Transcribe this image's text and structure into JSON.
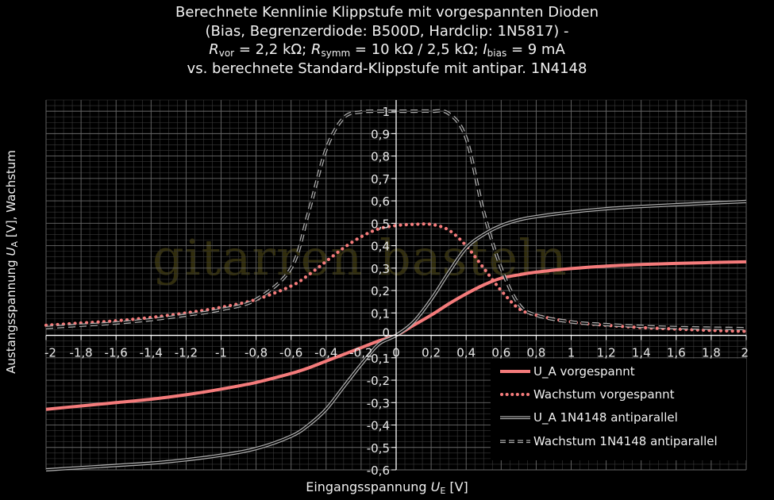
{
  "title": {
    "line1": "Berechnete Kennlinie Klippstufe mit vorgespannten Dioden",
    "line2": "(Bias, Begrenzerdiode: B500D, Hardclip: 1N5817) -",
    "line3": {
      "r1": "R",
      "r1_sub": "vor",
      "r1_val": " = 2,2 kΩ; ",
      "r2": "R",
      "r2_sub": "symm",
      "r2_val": " = 10 kΩ / 2,5 kΩ; ",
      "i": "I",
      "i_sub": "bias",
      "i_val": " = 9 mA"
    },
    "line4": "vs. berechnete Standard-Klippstufe mit antipar. 1N4148"
  },
  "xlabel": {
    "text": "Eingangsspannung ",
    "sym": "U",
    "sub": "E",
    "unit": " [V]"
  },
  "ylabel": {
    "text": "Austangsspannung ",
    "sym": "U",
    "sub": "A",
    "unit": " [V], Wachstum"
  },
  "watermark": "gitarren basteln",
  "colors": {
    "pink": "#f47b7b",
    "gray": "#aaaaaa",
    "grid": "#6a6a6a",
    "axis": "#ffffff"
  },
  "chart_data": {
    "type": "line",
    "xlim": [
      -2,
      2
    ],
    "ylim": [
      -0.6,
      1.05
    ],
    "grid": true,
    "legend_position": "bottom-right",
    "x_ticks": [
      "-2",
      "-1,8",
      "-1,6",
      "-1,4",
      "-1,2",
      "-1",
      "-0,8",
      "-0,6",
      "-0,4",
      "-0,2",
      "0",
      "0,2",
      "0,4",
      "0,6",
      "0,8",
      "1",
      "1,2",
      "1,4",
      "1,6",
      "1,8",
      "2"
    ],
    "y_ticks": [
      "1",
      "0,9",
      "0,8",
      "0,7",
      "0,6",
      "0,5",
      "0,4",
      "0,3",
      "0,2",
      "0,1",
      "0",
      "-0,1",
      "-0,2",
      "-0,3",
      "-0,4",
      "-0,5",
      "-0,6"
    ],
    "x": [
      -2,
      -1.8,
      -1.6,
      -1.4,
      -1.2,
      -1,
      -0.8,
      -0.6,
      -0.5,
      -0.4,
      -0.3,
      -0.2,
      -0.1,
      0,
      0.1,
      0.2,
      0.3,
      0.4,
      0.5,
      0.6,
      0.7,
      0.8,
      1,
      1.2,
      1.4,
      1.6,
      1.8,
      2
    ],
    "series": [
      {
        "name": "U_A vorgespannt",
        "style": "solid-pink",
        "values": [
          -0.33,
          -0.315,
          -0.3,
          -0.285,
          -0.265,
          -0.24,
          -0.21,
          -0.17,
          -0.145,
          -0.115,
          -0.085,
          -0.055,
          -0.025,
          0,
          0.045,
          0.09,
          0.14,
          0.185,
          0.225,
          0.255,
          0.27,
          0.282,
          0.298,
          0.309,
          0.316,
          0.321,
          0.325,
          0.328
        ]
      },
      {
        "name": "Wachstum vorgespannt",
        "style": "dotted-pink",
        "values": [
          0.045,
          0.055,
          0.065,
          0.08,
          0.1,
          0.125,
          0.16,
          0.22,
          0.27,
          0.33,
          0.39,
          0.44,
          0.475,
          0.49,
          0.495,
          0.495,
          0.47,
          0.4,
          0.3,
          0.2,
          0.12,
          0.09,
          0.06,
          0.045,
          0.035,
          0.028,
          0.022,
          0.018
        ]
      },
      {
        "name": "U_A 1N4148 antiparallel",
        "style": "solid-gray",
        "values": [
          -0.6,
          -0.59,
          -0.58,
          -0.57,
          -0.555,
          -0.535,
          -0.505,
          -0.45,
          -0.4,
          -0.33,
          -0.23,
          -0.13,
          -0.04,
          0,
          0.06,
          0.16,
          0.28,
          0.39,
          0.45,
          0.49,
          0.515,
          0.53,
          0.55,
          0.565,
          0.575,
          0.583,
          0.59,
          0.597
        ]
      },
      {
        "name": "Wachstum 1N4148 antiparallel",
        "style": "dashed-gray",
        "values": [
          0.035,
          0.045,
          0.055,
          0.07,
          0.09,
          0.115,
          0.16,
          0.3,
          0.55,
          0.83,
          0.97,
          0.997,
          1,
          1,
          1,
          1,
          0.99,
          0.88,
          0.55,
          0.3,
          0.14,
          0.09,
          0.06,
          0.048,
          0.04,
          0.035,
          0.032,
          0.03
        ]
      }
    ]
  }
}
